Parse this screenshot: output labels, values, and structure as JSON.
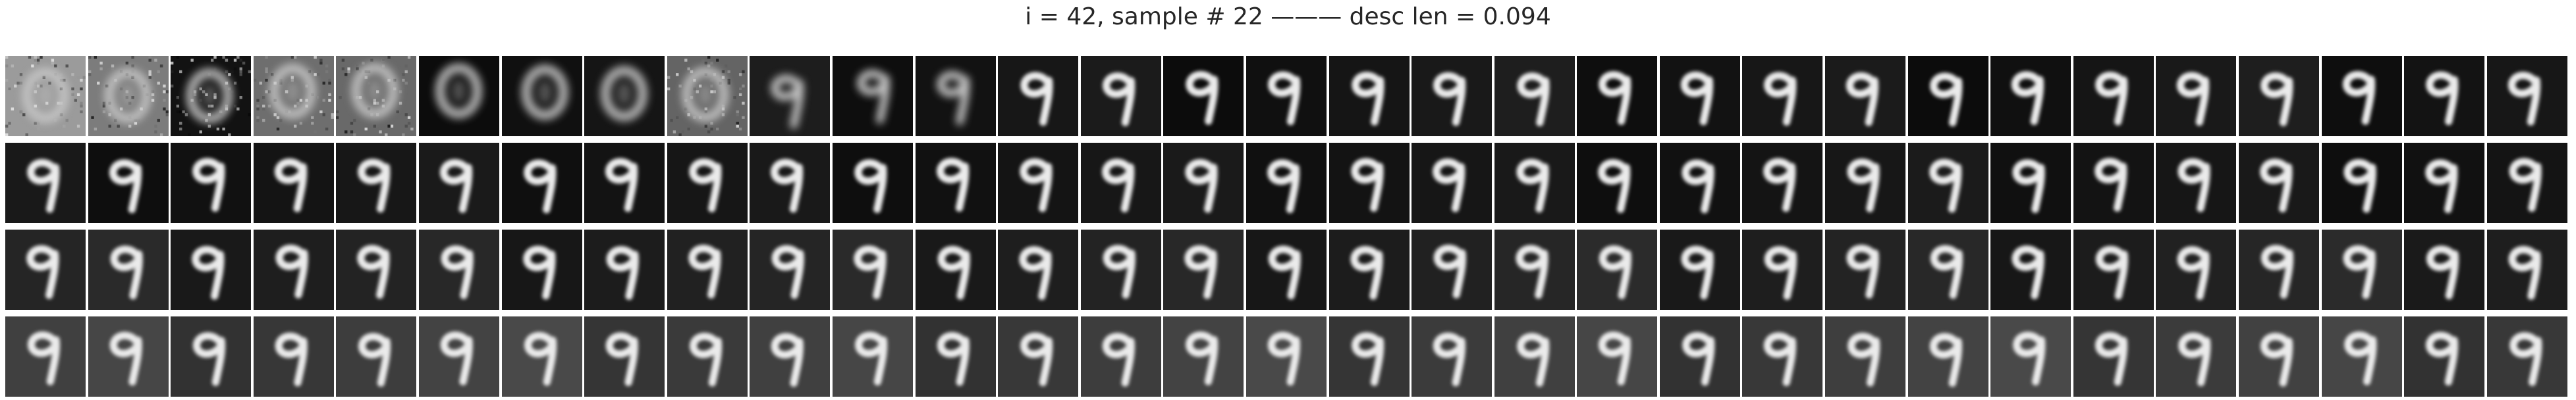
{
  "figure": {
    "title": "i = 42, sample # 22 ——— desc len = 0.094"
  },
  "grid": {
    "rows": 4,
    "columns": 31,
    "content": "grayscale reconstructions of a handwritten digit 9",
    "first_row_noisy_frames": 12
  }
}
